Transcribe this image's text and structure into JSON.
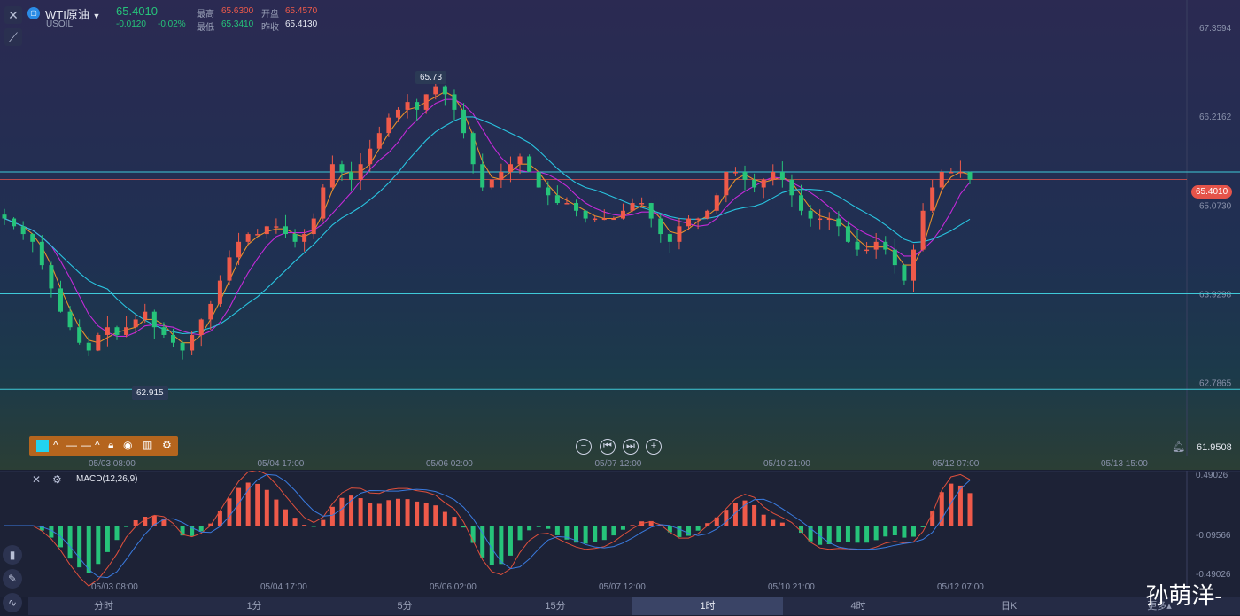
{
  "header": {
    "symbol": "WTI原油",
    "code": "USOIL",
    "price": "65.4010",
    "change": "-0.0120",
    "change_pct": "-0.02%",
    "high_label": "最高",
    "high": "65.6300",
    "open_label": "开盘",
    "open": "65.4570",
    "low_label": "最低",
    "low": "65.3410",
    "prev_label": "昨收",
    "prev": "65.4130"
  },
  "price_axis": [
    "67.3594",
    "66.2162",
    "65.0730",
    "63.9298",
    "62.7865"
  ],
  "current_price_tag": "65.4010",
  "annotations": {
    "high": "65.73",
    "low": "62.915"
  },
  "bottom_right_value": "61.9508",
  "time_axis": [
    "05/03 08:00",
    "05/04 17:00",
    "05/06 02:00",
    "05/07 12:00",
    "05/10 21:00",
    "05/12 07:00",
    "05/13 15:00"
  ],
  "macd": {
    "label": "MACD(12,26,9)",
    "axis": [
      "0.49026",
      "-0.09566",
      "-0.49026"
    ],
    "time_axis": [
      "05/03 08:00",
      "05/04 17:00",
      "05/06 02:00",
      "05/07 12:00",
      "05/10 21:00",
      "05/12 07:00"
    ]
  },
  "periods": [
    "分时",
    "1分",
    "5分",
    "15分",
    "1时",
    "4时",
    "日K",
    "更多▴"
  ],
  "active_period": "1时",
  "watermark": "孙萌洋-",
  "colors": {
    "up": "#ef5a4a",
    "down": "#26c37a",
    "ma1": "#e8902a",
    "ma2": "#c32ad8",
    "ma3": "#29c4e0",
    "hline": "#3fc9d8",
    "price_line": "#e5544a"
  },
  "chart_data": {
    "type": "candlestick",
    "close_series": [
      64.9,
      64.8,
      64.7,
      64.6,
      64.3,
      64.0,
      63.7,
      63.5,
      63.3,
      63.2,
      63.4,
      63.5,
      63.4,
      63.5,
      63.6,
      63.7,
      63.5,
      63.4,
      63.3,
      63.2,
      63.4,
      63.6,
      63.8,
      64.1,
      64.4,
      64.6,
      64.7,
      64.7,
      64.8,
      64.8,
      64.7,
      64.6,
      64.7,
      64.9,
      65.3,
      65.6,
      65.5,
      65.4,
      65.6,
      65.8,
      66.0,
      66.2,
      66.3,
      66.4,
      66.3,
      66.5,
      66.6,
      66.5,
      66.3,
      66.0,
      65.6,
      65.3,
      65.4,
      65.5,
      65.6,
      65.7,
      65.5,
      65.3,
      65.2,
      65.1,
      65.1,
      65.0,
      64.9,
      64.9,
      64.9,
      64.9,
      65.0,
      65.1,
      65.1,
      64.9,
      64.7,
      64.6,
      64.8,
      64.9,
      64.9,
      65.0,
      65.2,
      65.5,
      65.5,
      65.4,
      65.3,
      65.4,
      65.5,
      65.4,
      65.2,
      65.0,
      64.9,
      64.9,
      64.9,
      64.8,
      64.6,
      64.5,
      64.5,
      64.6,
      64.5,
      64.3,
      64.1,
      64.5,
      65.0,
      65.3,
      65.5,
      65.5,
      65.5,
      65.4
    ],
    "hlines": [
      65.5,
      63.9298,
      62.7
    ],
    "annotated_high": 65.73,
    "annotated_low": 62.915,
    "last_price": 65.401,
    "y_range": [
      61.95,
      67.6
    ]
  }
}
